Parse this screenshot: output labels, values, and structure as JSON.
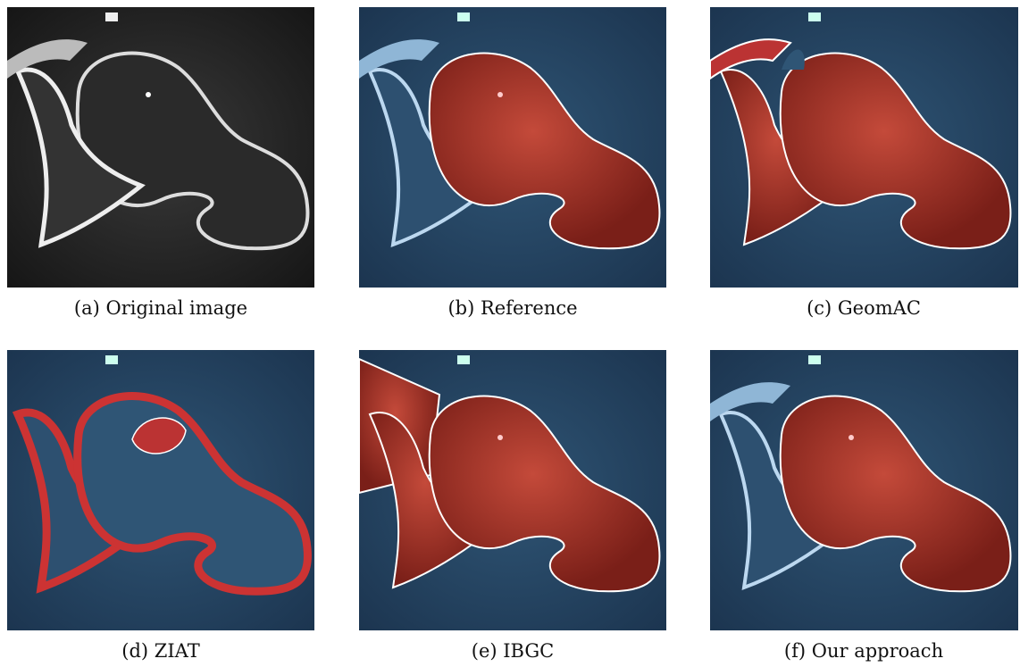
{
  "panels": [
    {
      "caption": "(a) Original image"
    },
    {
      "caption": "(b) Reference"
    },
    {
      "caption": "(c) GeomAC"
    },
    {
      "caption": "(d) ZIAT"
    },
    {
      "caption": "(e) IBGC"
    },
    {
      "caption": "(f) Our approach"
    }
  ]
}
